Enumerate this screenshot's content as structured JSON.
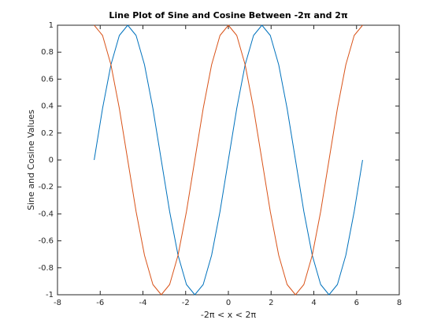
{
  "chart_data": {
    "type": "line",
    "title": "Line Plot of Sine and Cosine Between -2π and 2π",
    "x_label": "-2π < x < 2π",
    "y_label": "Sine and Cosine Values",
    "x": [
      -6.283,
      -5.89,
      -5.498,
      -5.105,
      -4.712,
      -4.32,
      -3.927,
      -3.534,
      -3.142,
      -2.749,
      -2.356,
      -1.963,
      -1.571,
      -1.178,
      -0.785,
      -0.393,
      0,
      0.393,
      0.785,
      1.178,
      1.571,
      1.963,
      2.356,
      2.749,
      3.142,
      3.534,
      3.927,
      4.32,
      4.712,
      5.105,
      5.498,
      5.89,
      6.283
    ],
    "series": [
      {
        "color": "#0072bd",
        "values": [
          0,
          0.383,
          0.707,
          0.924,
          1,
          0.924,
          0.707,
          0.383,
          0,
          -0.383,
          -0.707,
          -0.924,
          -1,
          -0.924,
          -0.707,
          -0.383,
          0,
          0.383,
          0.707,
          0.924,
          1,
          0.924,
          0.707,
          0.383,
          0,
          -0.383,
          -0.707,
          -0.924,
          -1,
          -0.924,
          -0.707,
          -0.383,
          0
        ]
      },
      {
        "color": "#d95319",
        "values": [
          1,
          0.924,
          0.707,
          0.383,
          0,
          -0.383,
          -0.707,
          -0.924,
          -1,
          -0.924,
          -0.707,
          -0.383,
          0,
          0.383,
          0.707,
          0.924,
          1,
          0.924,
          0.707,
          0.383,
          0,
          -0.383,
          -0.707,
          -0.924,
          -1,
          -0.924,
          -0.707,
          -0.383,
          0,
          0.383,
          0.707,
          0.924,
          1
        ]
      }
    ],
    "xlim": [
      -8,
      8
    ],
    "xticks": [
      -8,
      -6,
      -4,
      -2,
      0,
      2,
      4,
      6,
      8
    ],
    "ylim": [
      -1,
      1
    ],
    "yticks": [
      -1,
      -0.8,
      -0.6,
      -0.4,
      -0.2,
      0,
      0.2,
      0.4,
      0.6,
      0.8,
      1
    ],
    "grid": false
  }
}
